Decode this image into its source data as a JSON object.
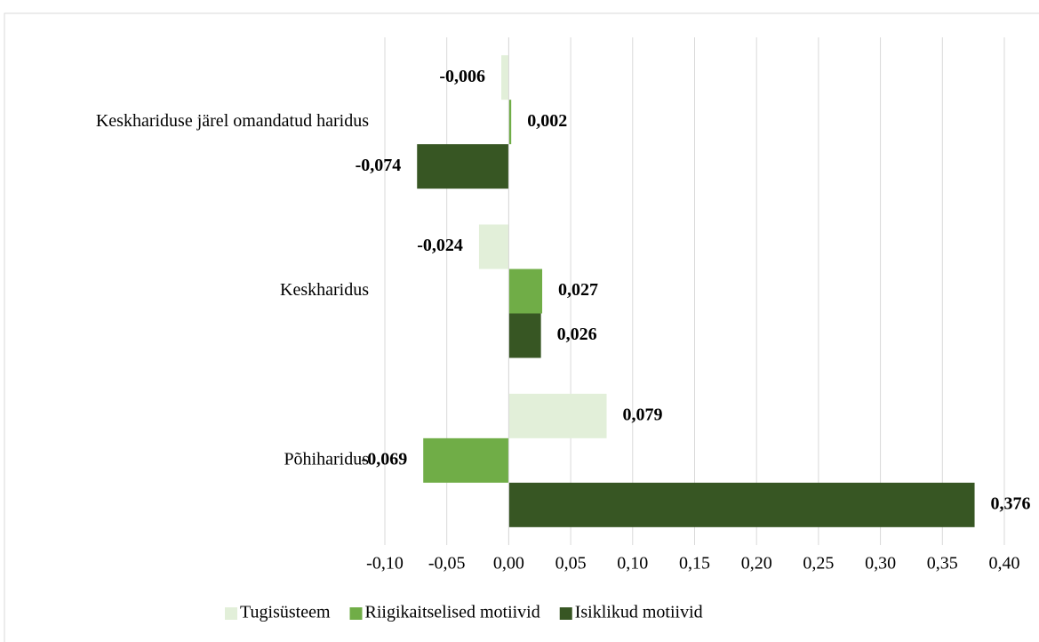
{
  "chart_data": {
    "type": "bar",
    "orientation": "horizontal",
    "categories": [
      "Keskhariduse järel omandatud haridus",
      "Keskharidus",
      "Põhiharidus"
    ],
    "series": [
      {
        "name": "Tugisüsteem",
        "color": "#e2efd9",
        "values": [
          -0.006,
          -0.024,
          0.079
        ],
        "value_labels": [
          "-0,006",
          "-0,024",
          "0,079"
        ]
      },
      {
        "name": "Riigikaitselised motiivid",
        "color": "#70ad47",
        "values": [
          0.002,
          0.027,
          -0.069
        ],
        "value_labels": [
          "0,002",
          "0,027",
          "-0,069"
        ]
      },
      {
        "name": "Isiklikud motiivid",
        "color": "#375623",
        "values": [
          -0.074,
          0.026,
          0.376
        ],
        "value_labels": [
          "-0,074",
          "0,026",
          "0,376"
        ]
      }
    ],
    "xlim": [
      -0.1,
      0.4
    ],
    "xticks": [
      {
        "value": -0.1,
        "label": "-0,10"
      },
      {
        "value": -0.05,
        "label": "-0,05"
      },
      {
        "value": 0,
        "label": "0,00"
      },
      {
        "value": 0.05,
        "label": "0,05"
      },
      {
        "value": 0.1,
        "label": "0,10"
      },
      {
        "value": 0.15,
        "label": "0,15"
      },
      {
        "value": 0.2,
        "label": "0,20"
      },
      {
        "value": 0.25,
        "label": "0,25"
      },
      {
        "value": 0.3,
        "label": "0,30"
      },
      {
        "value": 0.35,
        "label": "0,35"
      },
      {
        "value": 0.4,
        "label": "0,40"
      }
    ],
    "grid": true,
    "legend": "bottom"
  }
}
